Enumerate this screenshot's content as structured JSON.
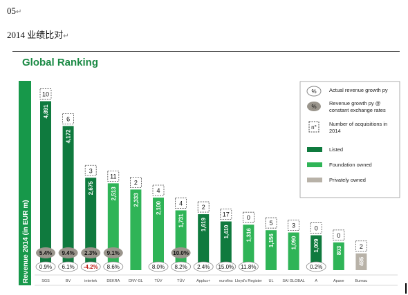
{
  "doc": {
    "line1": "05",
    "line2": "2014 业绩比对",
    "mark": "↵"
  },
  "chart_data": {
    "type": "bar",
    "title": "Global Ranking",
    "ylabel": "Revenue 2014 (in EUR m)",
    "ylim": [
      0,
      5200
    ],
    "legend": {
      "placement": "top-right",
      "items": [
        {
          "key": "actual",
          "symbol": "%",
          "label": "Actual revenue growth py"
        },
        {
          "key": "constant",
          "symbol": "%",
          "label": "Revenue growth py @ constant exchange rates"
        },
        {
          "key": "acq",
          "symbol": "n°",
          "label": "Number of acquisitions in 2014"
        },
        {
          "key": "listed",
          "label": "Listed"
        },
        {
          "key": "foundation",
          "label": "Foundation owned"
        },
        {
          "key": "private",
          "label": "Privately owned"
        }
      ]
    },
    "colors": {
      "listed": "#0f7a3e",
      "foundation": "#2fb457",
      "private": "#b8b2a8",
      "title": "#1b8a45",
      "axis_band": "#17984a"
    },
    "companies": [
      {
        "logo": "SGS",
        "value": 4891,
        "label": "4,891",
        "ownership": "listed",
        "acquisitions": "10",
        "constant": "5.4%",
        "actual": "0.9%"
      },
      {
        "logo": "BV",
        "value": 4172,
        "label": "4,172",
        "ownership": "listed",
        "acquisitions": "6",
        "constant": "9.4%",
        "actual": "6.1%"
      },
      {
        "logo": "intertek",
        "value": 2675,
        "label": "2,675",
        "ownership": "listed",
        "acquisitions": "3",
        "constant": "2.3%",
        "actual": "-4.2%"
      },
      {
        "logo": "DEKRA",
        "value": 2513,
        "label": "2,513",
        "ownership": "foundation",
        "acquisitions": "11",
        "constant": "9.1%",
        "actual": "8.6%"
      },
      {
        "logo": "DNV·GL",
        "value": 2333,
        "label": "2,333",
        "ownership": "foundation",
        "acquisitions": "2",
        "constant": "",
        "actual": ""
      },
      {
        "logo": "TÜV",
        "value": 2100,
        "label": "2,100",
        "ownership": "foundation",
        "acquisitions": "4",
        "constant": "",
        "actual": "8.0%"
      },
      {
        "logo": "TÜV",
        "value": 1731,
        "label": "1,731",
        "ownership": "foundation",
        "acquisitions": "4",
        "constant": "10.0%",
        "actual": "8.2%"
      },
      {
        "logo": "Applus+",
        "value": 1619,
        "label": "1,619",
        "ownership": "listed",
        "acquisitions": "2",
        "constant": "",
        "actual": "2.4%"
      },
      {
        "logo": "eurofins",
        "value": 1410,
        "label": "1,410",
        "ownership": "listed",
        "acquisitions": "17",
        "constant": "",
        "actual": "15.0%"
      },
      {
        "logo": "Lloyd's Register",
        "value": 1316,
        "label": "1,316",
        "ownership": "foundation",
        "acquisitions": "0",
        "constant": "",
        "actual": "11.8%"
      },
      {
        "logo": "UL",
        "value": 1156,
        "label": "1,156",
        "ownership": "foundation",
        "acquisitions": "5",
        "constant": "",
        "actual": ""
      },
      {
        "logo": "SAI GLOBAL",
        "value": 1090,
        "label": "1,090",
        "ownership": "foundation",
        "acquisitions": "3",
        "constant": "",
        "actual": ""
      },
      {
        "logo": "A",
        "value": 1009,
        "label": "1,009",
        "ownership": "listed",
        "acquisitions": "0",
        "constant": "",
        "actual": "0.2%"
      },
      {
        "logo": "Apave",
        "value": 803,
        "label": "803",
        "ownership": "foundation",
        "acquisitions": "0",
        "constant": "",
        "actual": ""
      },
      {
        "logo": "Bureau",
        "value": 485,
        "label": "485",
        "ownership": "private",
        "acquisitions": "2",
        "constant": "",
        "actual": ""
      }
    ]
  }
}
